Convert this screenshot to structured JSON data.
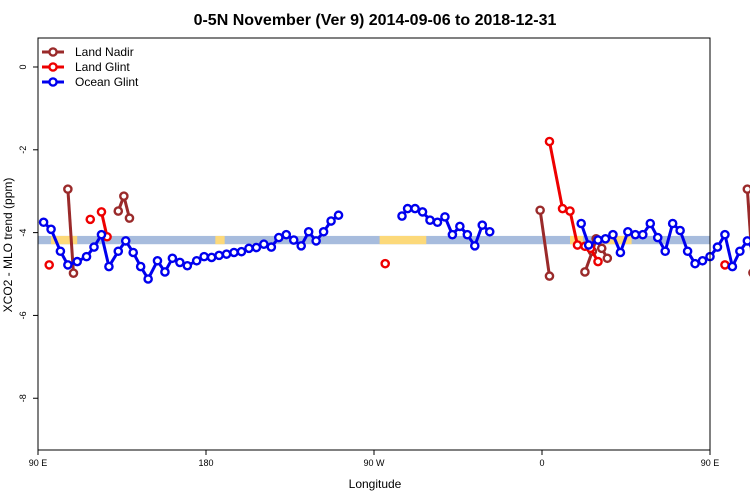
{
  "chart_data": {
    "type": "line",
    "title": "0-5N November (Ver 9)   2014-09-06 to 2018-12-31",
    "xlabel": "Longitude",
    "ylabel": "XCO2 - MLO trend (ppm)",
    "xlim": [
      90,
      450
    ],
    "ylim": [
      -9.25,
      0.7
    ],
    "x_ticks": [
      {
        "value": 90,
        "label": "90 E"
      },
      {
        "value": 180,
        "label": "180"
      },
      {
        "value": 270,
        "label": "90 W"
      },
      {
        "value": 360,
        "label": "0"
      },
      {
        "value": 450,
        "label": "90 E"
      },
      {
        "value": 540,
        "label": "180"
      }
    ],
    "y_ticks": [
      {
        "value": 0,
        "label": "0"
      },
      {
        "value": -2,
        "label": "-2"
      },
      {
        "value": -4,
        "label": "-4"
      },
      {
        "value": -6,
        "label": "-6"
      },
      {
        "value": -8,
        "label": "-8"
      }
    ],
    "grid": false,
    "legend_position": "top-left",
    "band": {
      "y_low": -4.28,
      "y_high": -4.08,
      "ocean_color": "#a7bcdd",
      "land_color": "#fcd97a"
    },
    "land_segments": [
      [
        97,
        111
      ],
      [
        185,
        190
      ],
      [
        273,
        298
      ],
      [
        375,
        382
      ],
      [
        393,
        408
      ],
      [
        460,
        468
      ],
      [
        483,
        485
      ]
    ],
    "series": [
      {
        "name": "Land Nadir",
        "color": "#9a2a2a",
        "segments": [
          [
            [
              106,
              -2.95
            ],
            [
              109,
              -4.98
            ]
          ],
          [
            [
              133,
              -3.48
            ],
            [
              136,
              -3.12
            ],
            [
              139,
              -3.65
            ]
          ],
          [
            [
              359,
              -3.46
            ],
            [
              364,
              -5.05
            ]
          ],
          [
            [
              383,
              -4.95
            ],
            [
              387,
              -4.45
            ],
            [
              389,
              -4.15
            ],
            [
              392,
              -4.38
            ],
            [
              395,
              -4.62
            ]
          ],
          [
            [
              470,
              -2.95
            ],
            [
              473,
              -4.97
            ]
          ],
          [
            [
              485,
              -3.48
            ]
          ]
        ]
      },
      {
        "name": "Land Glint",
        "color": "#ee0000",
        "segments": [
          [
            [
              96,
              -4.78
            ]
          ],
          [
            [
              118,
              -3.68
            ]
          ],
          [
            [
              124,
              -3.5
            ],
            [
              127,
              -4.1
            ]
          ],
          [
            [
              276,
              -4.75
            ]
          ],
          [
            [
              364,
              -1.8
            ],
            [
              371,
              -3.42
            ],
            [
              375,
              -3.48
            ],
            [
              379,
              -4.3
            ],
            [
              383,
              -4.33
            ],
            [
              386,
              -4.38
            ],
            [
              390,
              -4.7
            ]
          ],
          [
            [
              458,
              -4.78
            ]
          ],
          [
            [
              481,
              -3.68
            ]
          ]
        ]
      },
      {
        "name": "Ocean Glint",
        "color": "#0000ee",
        "segments": [
          [
            [
              93,
              -3.75
            ],
            [
              97,
              -3.92
            ],
            [
              102,
              -4.45
            ],
            [
              106,
              -4.78
            ],
            [
              111,
              -4.7
            ],
            [
              116,
              -4.58
            ],
            [
              120,
              -4.35
            ],
            [
              124,
              -4.05
            ],
            [
              128,
              -4.82
            ],
            [
              133,
              -4.45
            ],
            [
              137,
              -4.2
            ],
            [
              141,
              -4.48
            ],
            [
              145,
              -4.82
            ],
            [
              149,
              -5.12
            ],
            [
              154,
              -4.68
            ],
            [
              158,
              -4.95
            ],
            [
              162,
              -4.62
            ],
            [
              166,
              -4.72
            ],
            [
              170,
              -4.8
            ],
            [
              175,
              -4.68
            ],
            [
              179,
              -4.58
            ],
            [
              183,
              -4.6
            ],
            [
              187,
              -4.55
            ],
            [
              191,
              -4.52
            ],
            [
              195,
              -4.48
            ],
            [
              199,
              -4.46
            ],
            [
              203,
              -4.38
            ],
            [
              207,
              -4.36
            ],
            [
              211,
              -4.28
            ],
            [
              215,
              -4.35
            ],
            [
              219,
              -4.12
            ],
            [
              223,
              -4.05
            ],
            [
              227,
              -4.18
            ],
            [
              231,
              -4.32
            ],
            [
              235,
              -3.98
            ],
            [
              239,
              -4.2
            ],
            [
              243,
              -3.98
            ],
            [
              247,
              -3.72
            ],
            [
              251,
              -3.58
            ]
          ],
          [
            [
              285,
              -3.6
            ],
            [
              288,
              -3.42
            ],
            [
              292,
              -3.42
            ],
            [
              296,
              -3.5
            ],
            [
              300,
              -3.7
            ],
            [
              304,
              -3.75
            ],
            [
              308,
              -3.62
            ],
            [
              312,
              -4.05
            ],
            [
              316,
              -3.85
            ],
            [
              320,
              -4.05
            ],
            [
              324,
              -4.32
            ],
            [
              328,
              -3.82
            ],
            [
              332,
              -3.98
            ]
          ],
          [
            [
              381,
              -3.78
            ],
            [
              385,
              -4.3
            ],
            [
              390,
              -4.18
            ],
            [
              394,
              -4.15
            ],
            [
              398,
              -4.05
            ],
            [
              402,
              -4.48
            ],
            [
              406,
              -3.98
            ],
            [
              410,
              -4.05
            ],
            [
              414,
              -4.05
            ],
            [
              418,
              -3.78
            ],
            [
              422,
              -4.12
            ],
            [
              426,
              -4.45
            ],
            [
              430,
              -3.78
            ],
            [
              434,
              -3.95
            ],
            [
              438,
              -4.45
            ],
            [
              442,
              -4.75
            ],
            [
              446,
              -4.68
            ],
            [
              450,
              -4.58
            ],
            [
              454,
              -4.35
            ],
            [
              458,
              -4.05
            ],
            [
              462,
              -4.82
            ],
            [
              466,
              -4.45
            ],
            [
              470,
              -4.2
            ],
            [
              474,
              -4.48
            ],
            [
              478,
              -4.82
            ],
            [
              482,
              -5.12
            ]
          ]
        ]
      }
    ]
  }
}
